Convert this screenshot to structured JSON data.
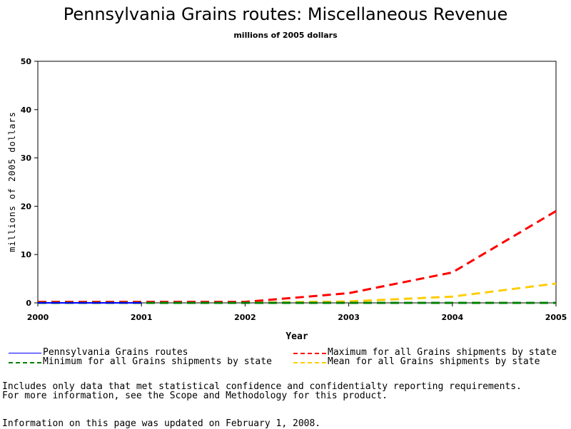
{
  "chart_data": {
    "type": "line",
    "title": "Pennsylvania Grains routes: Miscellaneous Revenue",
    "subtitle": "millions of 2005 dollars",
    "xlabel": "Year",
    "ylabel": "millions of 2005 dollars",
    "xlim": [
      2000,
      2005
    ],
    "ylim": [
      0,
      50
    ],
    "x_ticks": [
      "2000",
      "2001",
      "2002",
      "2003",
      "2004",
      "2005"
    ],
    "y_ticks": [
      "0",
      "10",
      "20",
      "30",
      "40",
      "50"
    ],
    "legend_placement": "bottom",
    "series": [
      {
        "name": "Pennsylvania Grains routes",
        "color": "#0000ff",
        "dash": "solid",
        "points": [
          [
            2000,
            0
          ],
          [
            2001,
            0
          ]
        ]
      },
      {
        "name": "Maximum for all Grains shipments by state",
        "color": "#ff0000",
        "dash": "dashed",
        "points": [
          [
            2000,
            0.2
          ],
          [
            2001,
            0.2
          ],
          [
            2002,
            0.2
          ],
          [
            2003,
            2.0
          ],
          [
            2004,
            6.3
          ],
          [
            2005,
            19.0
          ]
        ]
      },
      {
        "name": "Minimum for all Grains shipments by state",
        "color": "#008000",
        "dash": "dashed",
        "points": [
          [
            2000,
            0
          ],
          [
            2001,
            0
          ],
          [
            2002,
            0
          ],
          [
            2003,
            0
          ],
          [
            2004,
            0
          ],
          [
            2005,
            0
          ]
        ]
      },
      {
        "name": "Mean for all Grains shipments by state",
        "color": "#ffcc00",
        "dash": "dashed",
        "points": [
          [
            2000,
            0
          ],
          [
            2001,
            0
          ],
          [
            2002,
            0
          ],
          [
            2003,
            0.3
          ],
          [
            2004,
            1.3
          ],
          [
            2005,
            4.0
          ]
        ]
      }
    ]
  },
  "notes": {
    "line1": "Includes only data that met statistical confidence and confidentialty reporting requirements.",
    "line2": "For more information, see the Scope and Methodology for this product.",
    "updated": "Information on this page was updated on February 1, 2008."
  }
}
